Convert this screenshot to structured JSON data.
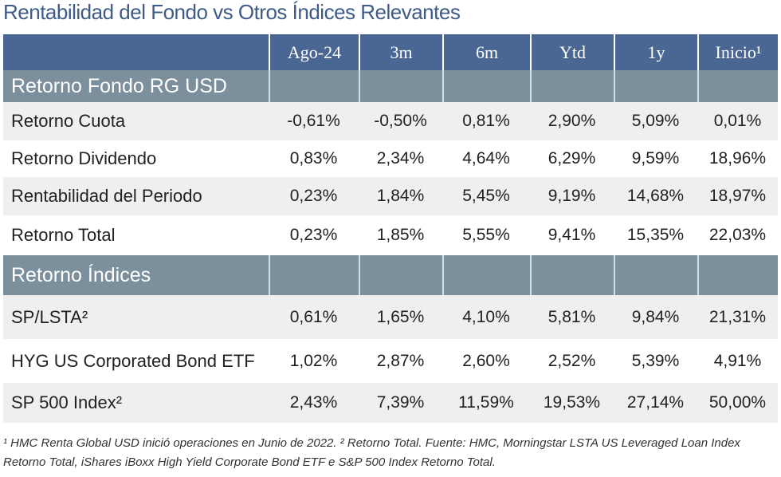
{
  "title": "Rentabilidad del Fondo vs Otros Índices Relevantes",
  "table": {
    "columns": [
      "Ago-24",
      "3m",
      "6m",
      "Ytd",
      "1y",
      "Inicio¹"
    ],
    "sections": [
      {
        "title": "Retorno Fondo RG USD",
        "rows": [
          {
            "label": "Retorno Cuota",
            "values": [
              "-0,61%",
              "-0,50%",
              "0,81%",
              "2,90%",
              "5,09%",
              "0,01%"
            ]
          },
          {
            "label": "Retorno Dividendo",
            "values": [
              "0,83%",
              "2,34%",
              "4,64%",
              "6,29%",
              "9,59%",
              "18,96%"
            ]
          },
          {
            "label": "Rentabilidad del Periodo",
            "values": [
              "0,23%",
              "1,84%",
              "5,45%",
              "9,19%",
              "14,68%",
              "18,97%"
            ]
          },
          {
            "label": "Retorno Total",
            "values": [
              "0,23%",
              "1,85%",
              "5,55%",
              "9,41%",
              "15,35%",
              "22,03%"
            ]
          }
        ]
      },
      {
        "title": "Retorno  Índices",
        "rows": [
          {
            "label": "SP/LSTA²",
            "values": [
              "0,61%",
              "1,65%",
              "4,10%",
              "5,81%",
              "9,84%",
              "21,31%"
            ]
          },
          {
            "label": "HYG US Corporated Bond ETF",
            "values": [
              "1,02%",
              "2,87%",
              "2,60%",
              "2,52%",
              "5,39%",
              "4,91%"
            ]
          },
          {
            "label": "SP 500 Index²",
            "values": [
              "2,43%",
              "7,39%",
              "11,59%",
              "19,53%",
              "27,14%",
              "50,00%"
            ]
          }
        ]
      }
    ]
  },
  "footnote": "¹ HMC Renta Global USD inició operaciones en Junio de 2022. ² Retorno Total. Fuente: HMC, Morningstar LSTA US Leveraged Loan Index Retorno Total, iShares iBoxx High Yield Corporate Bond ETF e S&P 500 Index Retorno Total."
}
